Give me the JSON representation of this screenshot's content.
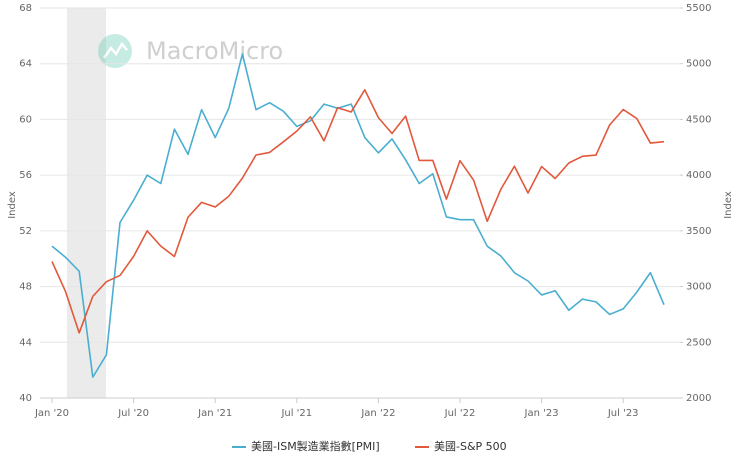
{
  "chart_data": {
    "type": "line",
    "watermark": "MacroMicro",
    "y_label": "Index",
    "y2_label": "Index",
    "x": [
      "2020-01",
      "2020-02",
      "2020-03",
      "2020-04",
      "2020-05",
      "2020-06",
      "2020-07",
      "2020-08",
      "2020-09",
      "2020-10",
      "2020-11",
      "2020-12",
      "2021-01",
      "2021-02",
      "2021-03",
      "2021-04",
      "2021-05",
      "2021-06",
      "2021-07",
      "2021-08",
      "2021-09",
      "2021-10",
      "2021-11",
      "2021-12",
      "2022-01",
      "2022-02",
      "2022-03",
      "2022-04",
      "2022-05",
      "2022-06",
      "2022-07",
      "2022-08",
      "2022-09",
      "2022-10",
      "2022-11",
      "2022-12",
      "2023-01",
      "2023-02",
      "2023-03",
      "2023-04",
      "2023-05",
      "2023-06",
      "2023-07",
      "2023-08",
      "2023-09",
      "2023-10"
    ],
    "xticks": [
      {
        "value": "2020-01",
        "label": "Jan '20"
      },
      {
        "value": "2020-07",
        "label": "Jul '20"
      },
      {
        "value": "2021-01",
        "label": "Jan '21"
      },
      {
        "value": "2021-07",
        "label": "Jul '21"
      },
      {
        "value": "2022-01",
        "label": "Jan '22"
      },
      {
        "value": "2022-07",
        "label": "Jul '22"
      },
      {
        "value": "2023-01",
        "label": "Jan '23"
      },
      {
        "value": "2023-07",
        "label": "Jul '23"
      }
    ],
    "ylim": [
      40,
      68
    ],
    "yticks": [
      40,
      44,
      48,
      52,
      56,
      60,
      64,
      68
    ],
    "y2lim": [
      2000,
      5500
    ],
    "y2ticks": [
      2000,
      2500,
      3000,
      3500,
      4000,
      4500,
      5000,
      5500
    ],
    "grid": true,
    "series": [
      {
        "name": "美國-ISM製造業指數[PMI]",
        "color": "#4aaed0",
        "values": [
          50.9,
          50.1,
          49.1,
          41.5,
          43.1,
          52.6,
          54.2,
          56.0,
          55.4,
          59.3,
          57.5,
          60.7,
          58.7,
          60.8,
          64.7,
          60.7,
          61.2,
          60.6,
          59.5,
          59.9,
          61.1,
          60.8,
          61.1,
          58.7,
          57.6,
          58.6,
          57.1,
          55.4,
          56.1,
          53.0,
          52.8,
          52.8,
          50.9,
          50.2,
          49.0,
          48.4,
          47.4,
          47.7,
          46.3,
          47.1,
          46.9,
          46.0,
          46.4,
          47.6,
          49.0,
          46.7
        ]
      },
      {
        "name": "美國-S&P 500",
        "color": "#e2583a",
        "axis": "y2",
        "values": [
          3225,
          2954,
          2585,
          2912,
          3044,
          3100,
          3271,
          3500,
          3363,
          3270,
          3622,
          3756,
          3714,
          3811,
          3973,
          4181,
          4204,
          4298,
          4395,
          4523,
          4308,
          4605,
          4567,
          4766,
          4516,
          4374,
          4530,
          4132,
          4132,
          3785,
          4130,
          3955,
          3586,
          3872,
          4080,
          3840,
          4077,
          3970,
          4109,
          4169,
          4180,
          4450,
          4589,
          4508,
          4288,
          4300
        ]
      }
    ]
  }
}
